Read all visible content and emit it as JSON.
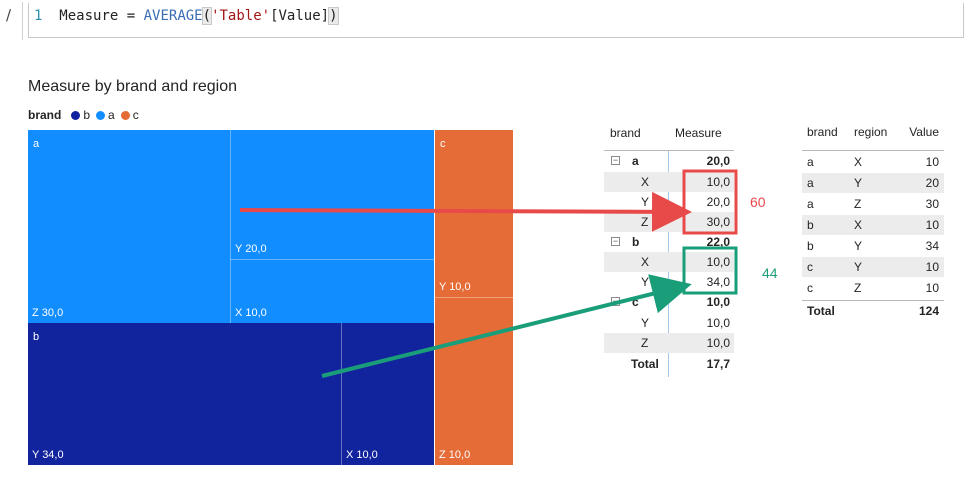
{
  "formula": {
    "line_number": "1",
    "measure_name": "Measure",
    "equals": " = ",
    "function": "AVERAGE",
    "open_paren": "(",
    "table_ref": "'Table'",
    "column_ref": "[Value]",
    "close_paren": ")",
    "check_icon": "check-icon"
  },
  "chart": {
    "title": "Measure by brand and region",
    "legend": {
      "title": "brand",
      "items": [
        {
          "label": "b",
          "color": "#12239e"
        },
        {
          "label": "a",
          "color": "#118dff"
        },
        {
          "label": "c",
          "color": "#e66c37"
        }
      ]
    },
    "tiles": {
      "a": {
        "label": "a",
        "color": "#118dff",
        "children": {
          "Z": "Z 30,0",
          "Y": "Y 20,0",
          "X": "X 10,0"
        }
      },
      "b": {
        "label": "b",
        "color": "#12239e",
        "children": {
          "Y": "Y 34,0",
          "X": "X 10,0"
        }
      },
      "c": {
        "label": "c",
        "color": "#e66c37",
        "children": {
          "Y": "Y 10,0",
          "Z": "Z 10,0"
        }
      }
    }
  },
  "chart_data": {
    "type": "treemap",
    "title": "Measure by brand and region",
    "legend_title": "brand",
    "series": [
      {
        "name": "a",
        "values": [
          {
            "region": "Z",
            "value": 30.0
          },
          {
            "region": "Y",
            "value": 20.0
          },
          {
            "region": "X",
            "value": 10.0
          }
        ]
      },
      {
        "name": "b",
        "values": [
          {
            "region": "Y",
            "value": 34.0
          },
          {
            "region": "X",
            "value": 10.0
          }
        ]
      },
      {
        "name": "c",
        "values": [
          {
            "region": "Y",
            "value": 10.0
          },
          {
            "region": "Z",
            "value": 10.0
          }
        ]
      }
    ]
  },
  "matrix": {
    "headers": {
      "brand": "brand",
      "measure": "Measure"
    },
    "groups": [
      {
        "brand": "a",
        "total": "20,0",
        "rows": [
          {
            "region": "X",
            "value": "10,0"
          },
          {
            "region": "Y",
            "value": "20,0"
          },
          {
            "region": "Z",
            "value": "30,0"
          }
        ]
      },
      {
        "brand": "b",
        "total": "22,0",
        "rows": [
          {
            "region": "X",
            "value": "10,0"
          },
          {
            "region": "Y",
            "value": "34,0"
          }
        ]
      },
      {
        "brand": "c",
        "total": "10,0",
        "rows": [
          {
            "region": "Y",
            "value": "10,0"
          },
          {
            "region": "Z",
            "value": "10,0"
          }
        ]
      }
    ],
    "total_label": "Total",
    "total_value": "17,7",
    "collapse_symbol": "−"
  },
  "table": {
    "headers": {
      "brand": "brand",
      "region": "region",
      "value": "Value"
    },
    "rows": [
      {
        "brand": "a",
        "region": "X",
        "value": "10"
      },
      {
        "brand": "a",
        "region": "Y",
        "value": "20"
      },
      {
        "brand": "a",
        "region": "Z",
        "value": "30"
      },
      {
        "brand": "b",
        "region": "X",
        "value": "10"
      },
      {
        "brand": "b",
        "region": "Y",
        "value": "34"
      },
      {
        "brand": "c",
        "region": "Y",
        "value": "10"
      },
      {
        "brand": "c",
        "region": "Z",
        "value": "10"
      }
    ],
    "total_label": "Total",
    "total_value": "124"
  },
  "annotations": {
    "red": {
      "label": "60",
      "color": "#e84a4a"
    },
    "green": {
      "label": "44",
      "color": "#1a9e7a"
    }
  }
}
